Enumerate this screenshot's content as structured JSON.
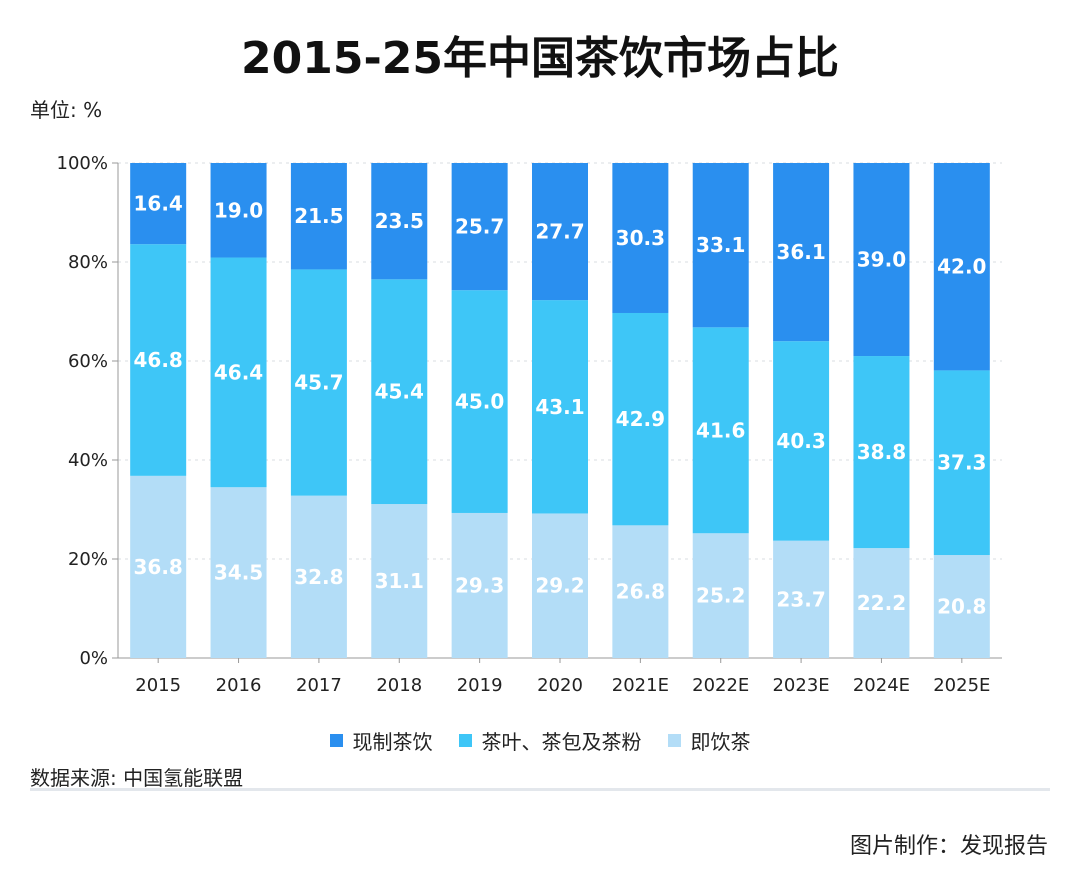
{
  "title": "2015-25年中国茶饮市场占比",
  "unit": "单位: %",
  "source": "数据来源: 中国氢能联盟",
  "credit": "图片制作：发现报告",
  "colors": {
    "fresh_tea": "#2a8fef",
    "tea_leaf": "#3ec6f7",
    "rtd_tea": "#b3ddf7"
  },
  "legend": [
    {
      "label": "现制茶饮",
      "color": "#2a8fef"
    },
    {
      "label": "茶叶、茶包及茶粉",
      "color": "#3ec6f7"
    },
    {
      "label": "即饮茶",
      "color": "#b3ddf7"
    }
  ],
  "chart_data": {
    "type": "bar",
    "stacked": true,
    "title": "2015-25年中国茶饮市场占比",
    "ylabel": "单位: %",
    "ylim": [
      0,
      100
    ],
    "y_ticks": [
      "0%",
      "20%",
      "40%",
      "60%",
      "80%",
      "100%"
    ],
    "grid": true,
    "legend_position": "bottom",
    "categories": [
      "2015",
      "2016",
      "2017",
      "2018",
      "2019",
      "2020",
      "2021E",
      "2022E",
      "2023E",
      "2024E",
      "2025E"
    ],
    "series": [
      {
        "name": "即饮茶",
        "color": "#b3ddf7",
        "values": [
          36.8,
          34.5,
          32.8,
          31.1,
          29.3,
          29.2,
          26.8,
          25.2,
          23.7,
          22.2,
          20.8
        ]
      },
      {
        "name": "茶叶、茶包及茶粉",
        "color": "#3ec6f7",
        "values": [
          46.8,
          46.4,
          45.7,
          45.4,
          45.0,
          43.1,
          42.9,
          41.6,
          40.3,
          38.8,
          37.3
        ]
      },
      {
        "name": "现制茶饮",
        "color": "#2a8fef",
        "values": [
          16.4,
          19.0,
          21.5,
          23.5,
          25.7,
          27.7,
          30.3,
          33.1,
          36.1,
          39.0,
          42.0
        ]
      }
    ]
  }
}
